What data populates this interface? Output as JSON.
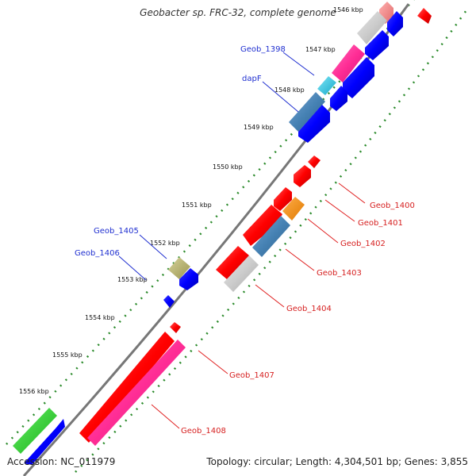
{
  "title": "Geobacter sp. FRC-32, complete genome",
  "footer": {
    "accession": "Accession: NC_011979",
    "summary": "Topology: circular; Length: 4,304,501 bp; Genes: 3,855"
  },
  "ticks": [
    "1546 kbp",
    "1547 kbp",
    "1548 kbp",
    "1549 kbp",
    "1550 kbp",
    "1551 kbp",
    "1552 kbp",
    "1553 kbp",
    "1554 kbp",
    "1555 kbp",
    "1556 kbp"
  ],
  "genes": [
    {
      "id": "geob-1398",
      "label": "Geob_1398",
      "color": "#4a6fb5"
    },
    {
      "id": "dapf",
      "label": "dapF",
      "color": "#4a6fb5"
    },
    {
      "id": "geob-1400",
      "label": "Geob_1400",
      "color": "#e63a3a"
    },
    {
      "id": "geob-1401",
      "label": "Geob_1401",
      "color": "#e63a3a"
    },
    {
      "id": "geob-1402",
      "label": "Geob_1402",
      "color": "#e63a3a"
    },
    {
      "id": "geob-1403",
      "label": "Geob_1403",
      "color": "#e63a3a"
    },
    {
      "id": "geob-1404",
      "label": "Geob_1404",
      "color": "#e63a3a"
    },
    {
      "id": "geob-1405",
      "label": "Geob_1405",
      "color": "#2a36c8"
    },
    {
      "id": "geob-1406",
      "label": "Geob_1406",
      "color": "#2a36c8"
    },
    {
      "id": "geob-1407",
      "label": "Geob_1407",
      "color": "#e63a3a"
    },
    {
      "id": "geob-1408",
      "label": "Geob_1408",
      "color": "#e63a3a"
    }
  ],
  "feature_colors": {
    "cds_forward": "#ff0000",
    "cds_reverse": "#0000ff",
    "pink": "#ff2d95",
    "gray": "#cccccc",
    "steelblue": "#4682b4",
    "orange": "#ff8c00",
    "olive": "#b5b06a",
    "green": "#22cc22",
    "cyan": "#22c4e0",
    "salmon": "#f08080",
    "tick_dots": "#2a8a2a",
    "backbone": "#777777"
  }
}
